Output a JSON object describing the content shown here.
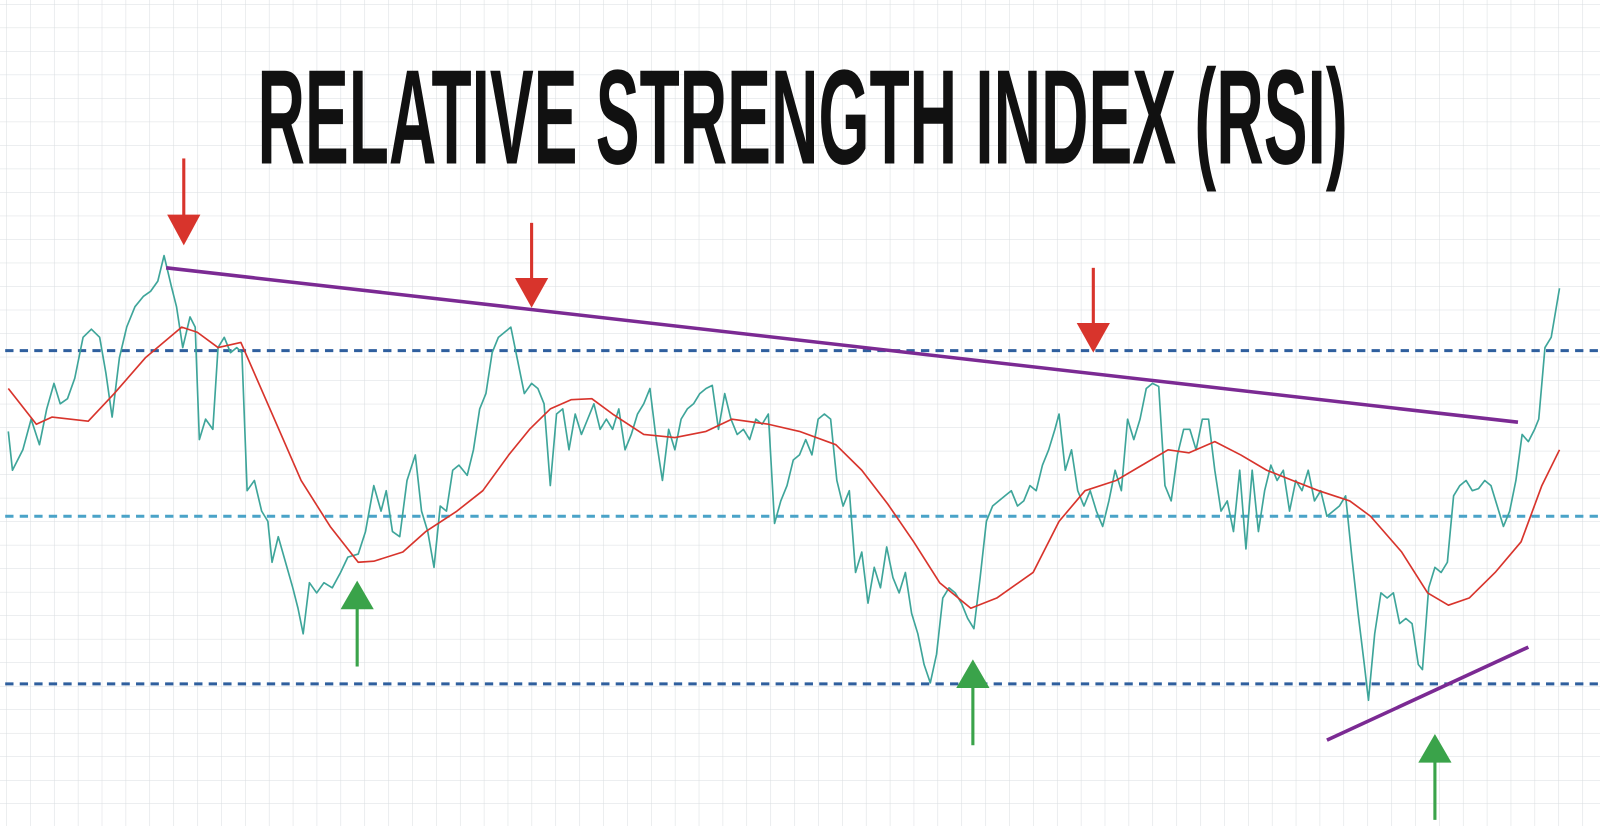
{
  "header": {
    "title": "RELATIVE STRENGTH INDEX (RSI)"
  }
}
